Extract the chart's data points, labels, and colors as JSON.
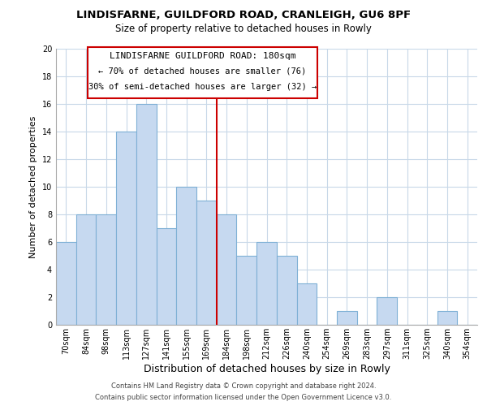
{
  "title_line1": "LINDISFARNE, GUILDFORD ROAD, CRANLEIGH, GU6 8PF",
  "title_line2": "Size of property relative to detached houses in Rowly",
  "xlabel": "Distribution of detached houses by size in Rowly",
  "ylabel": "Number of detached properties",
  "categories": [
    "70sqm",
    "84sqm",
    "98sqm",
    "113sqm",
    "127sqm",
    "141sqm",
    "155sqm",
    "169sqm",
    "184sqm",
    "198sqm",
    "212sqm",
    "226sqm",
    "240sqm",
    "254sqm",
    "269sqm",
    "283sqm",
    "297sqm",
    "311sqm",
    "325sqm",
    "340sqm",
    "354sqm"
  ],
  "values": [
    6,
    8,
    8,
    14,
    16,
    7,
    10,
    9,
    8,
    5,
    6,
    5,
    3,
    0,
    1,
    0,
    2,
    0,
    0,
    1,
    0
  ],
  "bar_color": "#c6d9f0",
  "bar_edgecolor": "#7eb0d5",
  "vline_color": "#cc0000",
  "annotation_title": "LINDISFARNE GUILDFORD ROAD: 180sqm",
  "annotation_line2": "← 70% of detached houses are smaller (76)",
  "annotation_line3": "30% of semi-detached houses are larger (32) →",
  "annotation_box_edgecolor": "#cc0000",
  "annotation_box_facecolor": "#ffffff",
  "ylim": [
    0,
    20
  ],
  "yticks": [
    0,
    2,
    4,
    6,
    8,
    10,
    12,
    14,
    16,
    18,
    20
  ],
  "footer_line1": "Contains HM Land Registry data © Crown copyright and database right 2024.",
  "footer_line2": "Contains public sector information licensed under the Open Government Licence v3.0.",
  "background_color": "#ffffff",
  "grid_color": "#c8d8e8",
  "title_fontsize": 9.5,
  "subtitle_fontsize": 8.5,
  "xlabel_fontsize": 9,
  "ylabel_fontsize": 8,
  "tick_fontsize": 7,
  "ann_title_fontsize": 8,
  "ann_text_fontsize": 7.5,
  "footer_fontsize": 6
}
